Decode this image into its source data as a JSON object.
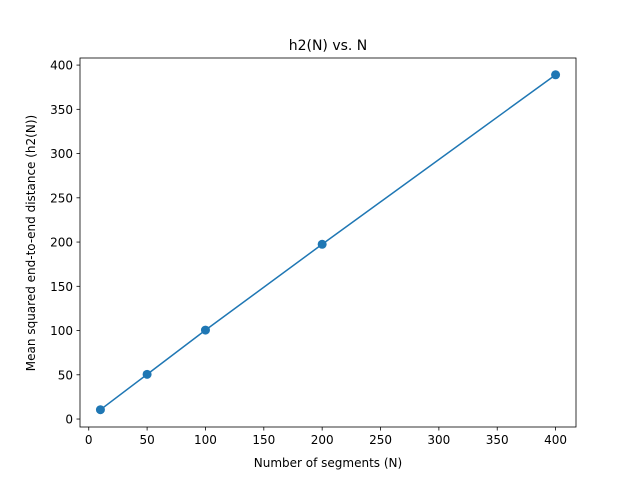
{
  "chart_data": {
    "type": "line",
    "title": "h2(N) vs. N",
    "xlabel": "Number of segments (N)",
    "ylabel": "Mean squared end-to-end distance (h2(N))",
    "xlim": [
      -7.5,
      417.5
    ],
    "ylim": [
      -9.0,
      408.0
    ],
    "xticks": [
      0,
      50,
      100,
      150,
      200,
      250,
      300,
      350,
      400
    ],
    "yticks": [
      0,
      50,
      100,
      150,
      200,
      250,
      300,
      350,
      400
    ],
    "grid": false,
    "legend": "none",
    "color": "#1f77b4",
    "marker": "circle",
    "x": [
      10,
      50,
      100,
      200,
      400
    ],
    "y": [
      10.5,
      50.5,
      100.5,
      197.5,
      389
    ]
  }
}
